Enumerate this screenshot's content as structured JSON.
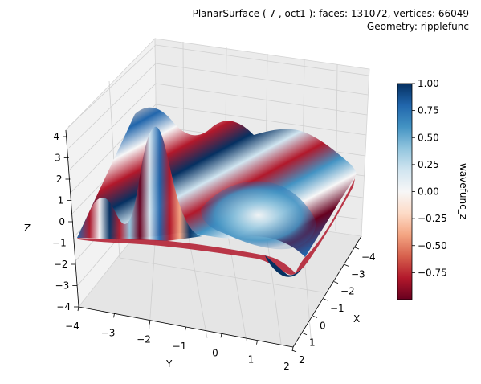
{
  "title": {
    "line1": "PlanarSurface ( 7 , oct1 ):  faces: 131072,  vertices: 66049",
    "line2": "Geometry: ripplefunc"
  },
  "chart_data": {
    "type": "surface3d",
    "title": "PlanarSurface ( 7 , oct1 ):  faces: 131072,  vertices: 66049",
    "subtitle": "Geometry: ripplefunc",
    "xlabel": "X",
    "ylabel": "Y",
    "zlabel": "Z",
    "xlim": [
      -4,
      2
    ],
    "ylim": [
      -4,
      2
    ],
    "zlim": [
      -4,
      4
    ],
    "x_ticks": [
      "−4",
      "−3",
      "−2",
      "−1",
      "0",
      "1",
      "2"
    ],
    "y_ticks": [
      "−4",
      "−3",
      "−2",
      "−1",
      "0",
      "1",
      "2"
    ],
    "z_ticks": [
      "−4",
      "−3",
      "−2",
      "−1",
      "0",
      "1",
      "2",
      "3",
      "4"
    ],
    "colormap": "RdBu",
    "colorbar": {
      "label": "wavefunc_z",
      "range": [
        -1.0,
        1.0
      ],
      "ticks": [
        "1.00",
        "0.75",
        "0.50",
        "0.25",
        "0.00",
        "−0.25",
        "−0.50",
        "−0.75"
      ],
      "tick_values": [
        1.0,
        0.75,
        0.5,
        0.25,
        0.0,
        -0.25,
        -0.5,
        -0.75
      ]
    },
    "grid": true
  }
}
